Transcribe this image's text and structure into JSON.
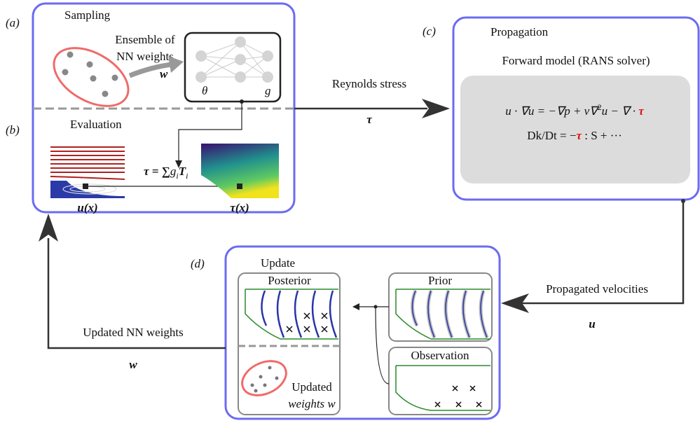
{
  "panels": {
    "a": "(a)",
    "b": "(b)",
    "c": "(c)",
    "d": "(d)"
  },
  "sampling": {
    "title": "Sampling",
    "arrow_label": [
      "Ensemble of",
      "NN weights"
    ],
    "symbol": "w",
    "nn_labels": [
      "θ",
      "g"
    ]
  },
  "evaluation": {
    "title": "Evaluation",
    "formula": [
      "τ = ∑",
      "g",
      "i",
      "T",
      "i"
    ],
    "field_labels": [
      "u(x)",
      "τ(x)"
    ]
  },
  "reynolds": {
    "label": "Reynolds stress",
    "symbol": "τ"
  },
  "propagation": {
    "title": "Propagation",
    "subtitle": "Forward model (RANS solver)",
    "eq1": [
      "u · ∇u = −∇p + ν∇",
      "2",
      "u − ∇ · ",
      "τ"
    ],
    "eq2": [
      "Dk/Dt = −",
      "τ",
      " : S + ···"
    ]
  },
  "propagated": {
    "label": "Propagated velocities",
    "symbol": "u"
  },
  "update": {
    "title": "Update",
    "posterior": "Posterior",
    "prior": "Prior",
    "observation": "Observation",
    "updated": [
      "Updated",
      "weights w"
    ]
  },
  "feedback": {
    "label": "Updated NN weights",
    "symbol": "w"
  }
}
